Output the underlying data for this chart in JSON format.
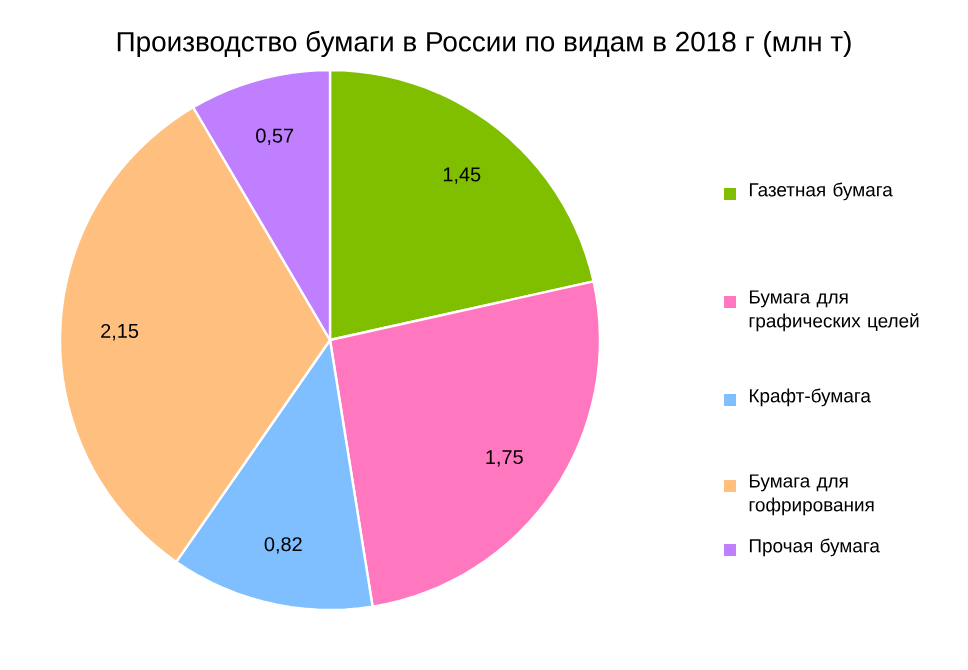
{
  "chart_data": {
    "type": "pie",
    "title": "Производство бумаги в России по видам в 2018 г (млн т)",
    "categories": [
      "Газетная бумага",
      "Бумага для графических целей",
      "Крафт-бумага",
      "Бумага для гофрирования",
      "Прочая бумага"
    ],
    "values": [
      1.45,
      1.75,
      0.82,
      2.15,
      0.57
    ],
    "value_labels": [
      "1,45",
      "1,75",
      "0,82",
      "2,15",
      "0,57"
    ],
    "colors": [
      "#7fbf00",
      "#ff77bf",
      "#7fbfff",
      "#ffbf7f",
      "#bf7fff"
    ],
    "legend": "right"
  }
}
